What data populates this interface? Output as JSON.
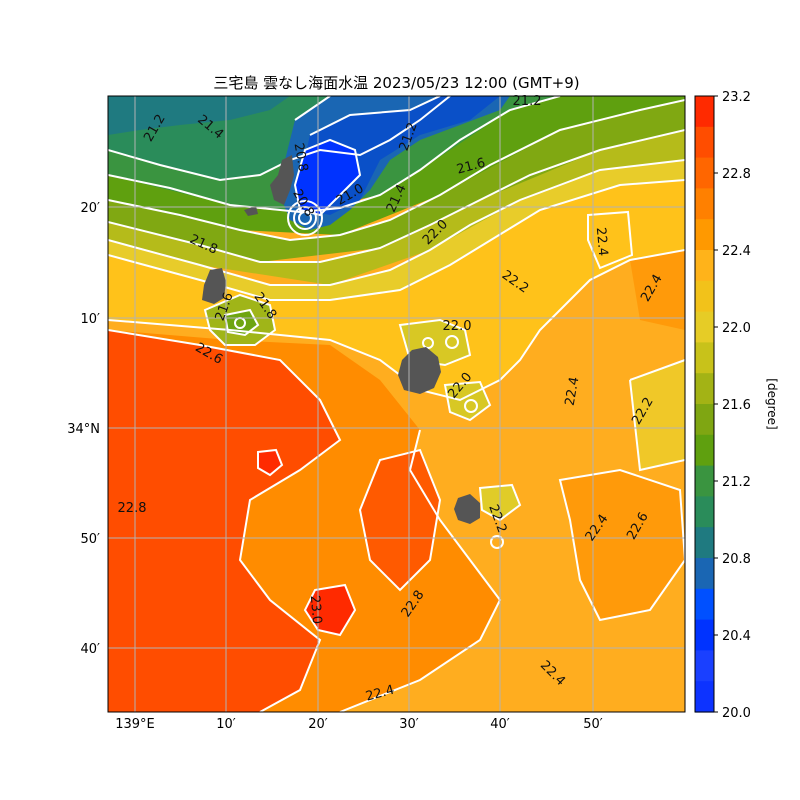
{
  "title": "三宅島 雲なし海面水温 2023/05/23 12:00 (GMT+9)",
  "colorbar": {
    "unit": "[degree]",
    "ticks": [
      "23.2",
      "22.8",
      "22.4",
      "22.0",
      "21.6",
      "21.2",
      "20.8",
      "20.4",
      "20.0"
    ],
    "colors": [
      "#ff2a00",
      "#ff4d00",
      "#ff6600",
      "#ff8000",
      "#ff9900",
      "#ffb31a",
      "#f2c21a",
      "#e6cc26",
      "#c8c21a",
      "#a3b315",
      "#7fa612",
      "#5fa00f",
      "#3a9440",
      "#2a8c5a",
      "#1f7a80",
      "#1a66b3",
      "#0050ff",
      "#0033ff",
      "#1a40ff",
      "#0d33ff"
    ]
  },
  "axes": {
    "x_labels": [
      "139°E",
      "10′",
      "20′",
      "30′",
      "40′",
      "50′"
    ],
    "y_labels": [
      "20′",
      "10′",
      "34°N",
      "50′",
      "40′"
    ]
  },
  "contour_labels": [
    "21.2",
    "21.2",
    "21.4",
    "21.2",
    "20.8",
    "21.0",
    "21.4",
    "21.6",
    "22.0",
    "20.8",
    "21.8",
    "22.4",
    "22.2",
    "22.4",
    "21.6",
    "21.8",
    "22.0",
    "22.6",
    "22.0",
    "22.4",
    "22.2",
    "22.8",
    "22.2",
    "22.4",
    "22.6",
    "23.0",
    "22.8",
    "22.4",
    "22.4"
  ],
  "colors": {
    "land": "#555555",
    "grid": "#b3b3b3",
    "contour": "#ffffff"
  }
}
